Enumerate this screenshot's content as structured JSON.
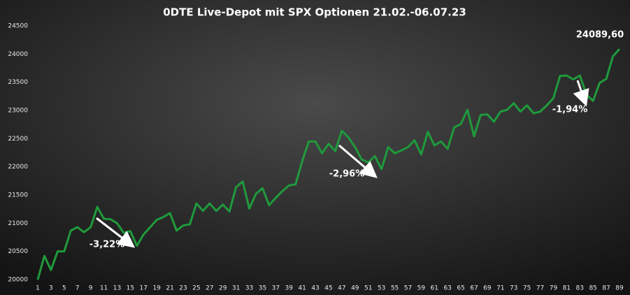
{
  "chart_data": {
    "type": "line",
    "title": "0DTE Live-Depot mit SPX Optionen 21.02.-06.07.23",
    "x": [
      1,
      2,
      3,
      4,
      5,
      6,
      7,
      8,
      9,
      10,
      11,
      12,
      13,
      14,
      15,
      16,
      17,
      18,
      19,
      20,
      21,
      22,
      23,
      24,
      25,
      26,
      27,
      28,
      29,
      30,
      31,
      32,
      33,
      34,
      35,
      36,
      37,
      38,
      39,
      40,
      41,
      42,
      43,
      44,
      45,
      46,
      47,
      48,
      49,
      50,
      51,
      52,
      53,
      54,
      55,
      56,
      57,
      58,
      59,
      60,
      61,
      62,
      63,
      64,
      65,
      66,
      67,
      68,
      69,
      70,
      71,
      72,
      73,
      74,
      75,
      76,
      77,
      78,
      79,
      80,
      81,
      82,
      83,
      84,
      85,
      86,
      87,
      88,
      89
    ],
    "series": [
      {
        "name": "Depot",
        "color": "#1f9a3c",
        "values": [
          20000,
          20420,
          20170,
          20500,
          20500,
          20870,
          20930,
          20840,
          20930,
          21290,
          21080,
          21070,
          21000,
          20830,
          20860,
          20600,
          20800,
          20930,
          21060,
          21110,
          21180,
          20870,
          20960,
          20980,
          21350,
          21220,
          21350,
          21220,
          21330,
          21210,
          21640,
          21740,
          21260,
          21520,
          21620,
          21320,
          21450,
          21570,
          21670,
          21690,
          22100,
          22450,
          22450,
          22240,
          22410,
          22280,
          22640,
          22520,
          22350,
          22130,
          22080,
          22190,
          21960,
          22350,
          22240,
          22290,
          22350,
          22470,
          22220,
          22620,
          22380,
          22450,
          22320,
          22700,
          22760,
          23010,
          22540,
          22920,
          22930,
          22800,
          22980,
          23010,
          23130,
          22980,
          23090,
          22950,
          22980,
          23090,
          23220,
          23610,
          23620,
          23550,
          23620,
          23280,
          23170,
          23490,
          23560,
          23960,
          24089.6
        ],
        "value_labels": [
          null,
          null,
          null,
          null,
          null,
          null,
          null,
          null,
          null,
          null,
          null,
          null,
          null,
          null,
          null,
          null,
          null,
          null,
          null,
          null,
          null,
          null,
          null,
          null,
          null,
          null,
          null,
          null,
          null,
          null,
          null,
          null,
          null,
          null,
          null,
          null,
          null,
          null,
          null,
          null,
          null,
          null,
          null,
          null,
          null,
          null,
          null,
          null,
          null,
          null,
          null,
          null,
          null,
          null,
          null,
          null,
          null,
          null,
          null,
          null,
          null,
          null,
          null,
          null,
          null,
          null,
          null,
          null,
          null,
          null,
          null,
          null,
          null,
          null,
          null,
          null,
          null,
          null,
          null,
          null,
          null,
          null,
          null,
          null,
          null,
          null,
          null,
          null,
          "24089,60"
        ]
      }
    ],
    "xlim": [
      1,
      89
    ],
    "xticks": [
      1,
      3,
      5,
      7,
      9,
      11,
      13,
      15,
      17,
      19,
      21,
      23,
      25,
      27,
      29,
      31,
      33,
      35,
      37,
      39,
      41,
      43,
      45,
      47,
      49,
      51,
      53,
      55,
      57,
      59,
      61,
      63,
      65,
      67,
      69,
      71,
      73,
      75,
      77,
      79,
      81,
      83,
      85,
      87,
      89
    ],
    "ylim": [
      20000,
      24500
    ],
    "yticks": [
      20000,
      20500,
      21000,
      21500,
      22000,
      22500,
      23000,
      23500,
      24000,
      24500
    ],
    "annotations": [
      {
        "text": "-3,22%"
      },
      {
        "text": "-2,96%"
      },
      {
        "text": "-1,94%"
      }
    ]
  }
}
